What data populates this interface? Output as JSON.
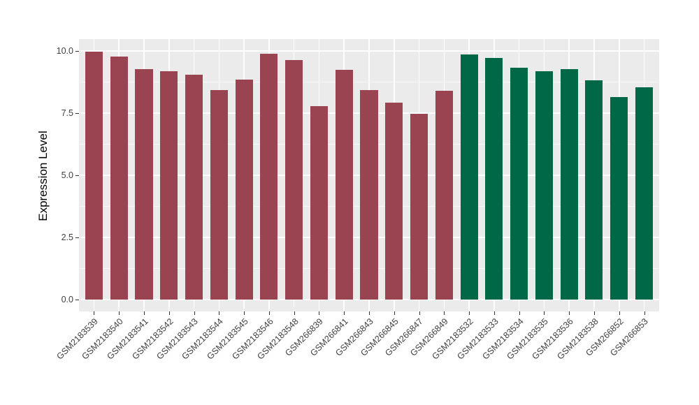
{
  "chart_data": {
    "type": "bar",
    "title": "",
    "xlabel": "",
    "ylabel": "Expression Level",
    "categories": [
      "GSM2183539",
      "GSM2183540",
      "GSM2183541",
      "GSM2183542",
      "GSM2183543",
      "GSM2183544",
      "GSM2183545",
      "GSM2183546",
      "GSM2183548",
      "GSM266839",
      "GSM266841",
      "GSM266843",
      "GSM266845",
      "GSM266847",
      "GSM266849",
      "GSM2183532",
      "GSM2183533",
      "GSM2183534",
      "GSM2183535",
      "GSM2183536",
      "GSM2183538",
      "GSM266852",
      "GSM266853"
    ],
    "values": [
      9.97,
      9.77,
      9.27,
      9.18,
      9.05,
      8.43,
      8.86,
      9.89,
      9.64,
      7.77,
      9.23,
      8.42,
      7.92,
      7.47,
      8.4,
      9.86,
      9.72,
      9.32,
      9.18,
      9.26,
      8.83,
      8.15,
      8.54
    ],
    "bar_colors": [
      "#9B4451",
      "#9B4451",
      "#9B4451",
      "#9B4451",
      "#9B4451",
      "#9B4451",
      "#9B4451",
      "#9B4451",
      "#9B4451",
      "#9B4451",
      "#9B4451",
      "#9B4451",
      "#9B4451",
      "#9B4451",
      "#9B4451",
      "#006847",
      "#006847",
      "#006847",
      "#006847",
      "#006847",
      "#006847",
      "#006847",
      "#006847"
    ],
    "palette": {
      "group_left": "#9B4451",
      "group_right": "#006847"
    },
    "ylim": [
      0,
      10.48
    ],
    "yticks": {
      "values": [
        0,
        2.5,
        5,
        7.5,
        10
      ],
      "labels": [
        "0.0",
        "2.5",
        "5.0",
        "7.5",
        "10.0"
      ],
      "minor": [
        1.25,
        3.75,
        6.25,
        8.75
      ]
    },
    "grid": true,
    "legend": "none",
    "panel_background": "#EBEBEB",
    "gridline_color": "#FFFFFF",
    "axis_text_color": "#404040"
  }
}
